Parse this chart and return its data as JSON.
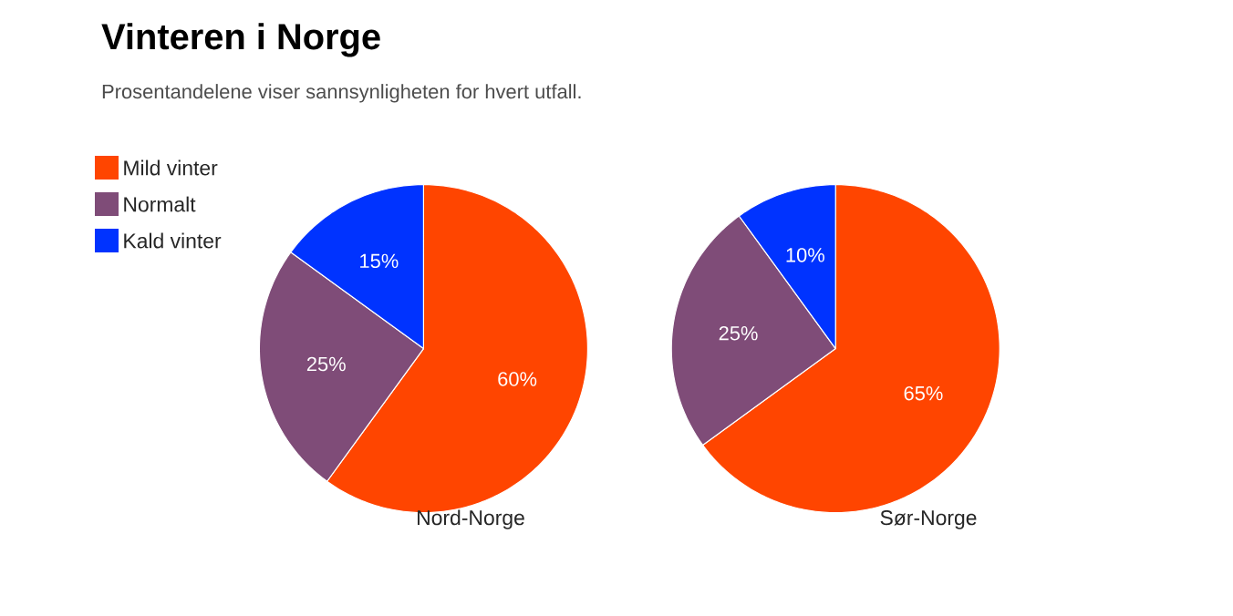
{
  "chart_data": [
    {
      "type": "pie",
      "title": "Vinteren i Norge",
      "subtitle": "Prosentandelene viser sannsynligheten for hvert utfall.",
      "xlabel": "Nord-Norge",
      "categories": [
        "Mild vinter",
        "Normalt",
        "Kald vinter"
      ],
      "values": [
        60,
        25,
        15
      ],
      "value_labels": [
        "60%",
        "25%",
        "15%"
      ],
      "colors": [
        "#ff4500",
        "#7f4c78",
        "#0033ff"
      ],
      "legend": "top left"
    },
    {
      "type": "pie",
      "xlabel": "Sør-Norge",
      "categories": [
        null,
        null,
        null
      ],
      "values": [
        65,
        25,
        10
      ],
      "value_labels": [
        "65%",
        "25%",
        "10%"
      ],
      "colors": [
        "#ff4500",
        "#7f4c78",
        "#0033ff"
      ]
    }
  ]
}
